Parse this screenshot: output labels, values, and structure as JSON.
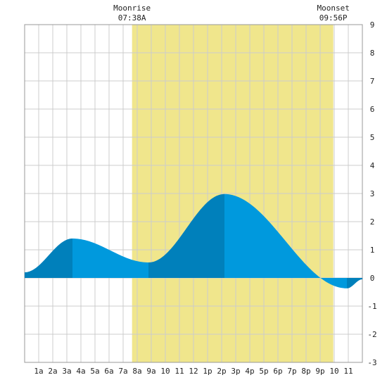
{
  "chart_data": {
    "type": "area",
    "annotations": [
      {
        "name": "Moonrise",
        "time": "07:38A",
        "hour": 7.633
      },
      {
        "name": "Moonset",
        "time": "09:56P",
        "hour": 21.933
      }
    ],
    "x_ticks": [
      {
        "hour": 1,
        "label": "1a"
      },
      {
        "hour": 2,
        "label": "2a"
      },
      {
        "hour": 3,
        "label": "3a"
      },
      {
        "hour": 4,
        "label": "4a"
      },
      {
        "hour": 5,
        "label": "5a"
      },
      {
        "hour": 6,
        "label": "6a"
      },
      {
        "hour": 7,
        "label": "7a"
      },
      {
        "hour": 8,
        "label": "8a"
      },
      {
        "hour": 9,
        "label": "9a"
      },
      {
        "hour": 10,
        "label": "10"
      },
      {
        "hour": 11,
        "label": "11"
      },
      {
        "hour": 12,
        "label": "12"
      },
      {
        "hour": 13,
        "label": "1p"
      },
      {
        "hour": 14,
        "label": "2p"
      },
      {
        "hour": 15,
        "label": "3p"
      },
      {
        "hour": 16,
        "label": "4p"
      },
      {
        "hour": 17,
        "label": "5p"
      },
      {
        "hour": 18,
        "label": "6p"
      },
      {
        "hour": 19,
        "label": "7p"
      },
      {
        "hour": 20,
        "label": "8p"
      },
      {
        "hour": 21,
        "label": "9p"
      },
      {
        "hour": 22,
        "label": "10"
      },
      {
        "hour": 23,
        "label": "11"
      }
    ],
    "y_ticks": [
      -3,
      -2,
      -1,
      0,
      1,
      2,
      3,
      4,
      5,
      6,
      7,
      8,
      9
    ],
    "xlim": [
      0,
      24
    ],
    "ylim": [
      -3,
      9
    ],
    "grid": true,
    "highlight_band": {
      "from_hour": 7.633,
      "to_hour": 21.933,
      "color": "#f0e68c"
    },
    "extrema": [
      {
        "hour": 0.0,
        "value": 0.2
      },
      {
        "hour": 3.4,
        "value": 1.4
      },
      {
        "hour": 8.8,
        "value": 0.55
      },
      {
        "hour": 14.2,
        "value": 2.98
      },
      {
        "hour": 22.9,
        "value": -0.37
      },
      {
        "hour": 24.0,
        "value": -0.05
      }
    ],
    "colors": {
      "rising": "#0080bb",
      "falling": "#0099dd",
      "grid": "#cccccc",
      "border": "#999999"
    }
  }
}
